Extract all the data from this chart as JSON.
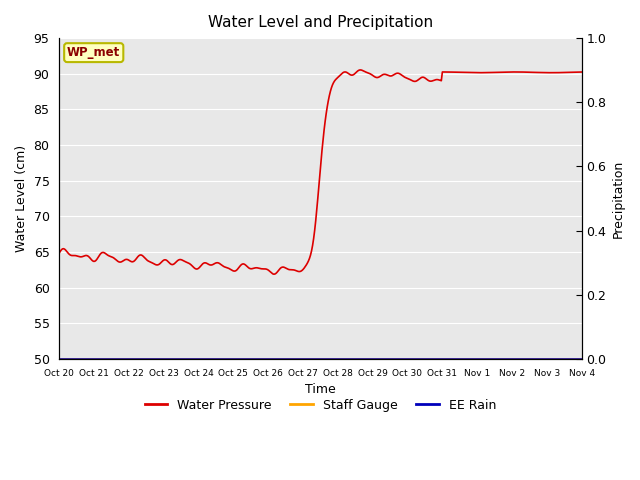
{
  "title": "Water Level and Precipitation",
  "xlabel": "Time",
  "ylabel_left": "Water Level (cm)",
  "ylabel_right": "Precipitation",
  "annotation_text": "WP_met",
  "annotation_color": "#8B0000",
  "annotation_bg": "#FFFFC0",
  "annotation_edge": "#B8B800",
  "ylim_left": [
    50,
    95
  ],
  "ylim_right": [
    0.0,
    1.0
  ],
  "yticks_left": [
    50,
    55,
    60,
    65,
    70,
    75,
    80,
    85,
    90,
    95
  ],
  "yticks_right": [
    0.0,
    0.2,
    0.4,
    0.6,
    0.8,
    1.0
  ],
  "xtick_labels": [
    "Oct 20",
    "Oct 21",
    "Oct 22",
    "Oct 23",
    "Oct 24",
    "Oct 25",
    "Oct 26",
    "Oct 27",
    "Oct 28",
    "Oct 29",
    "Oct 30",
    "Oct 31",
    "Nov 1",
    "Nov 2",
    "Nov 3",
    "Nov 4"
  ],
  "water_pressure_color": "#DD0000",
  "staff_gauge_color": "#FFA500",
  "ee_rain_color": "#0000BB",
  "bg_color": "#E8E8E8",
  "grid_color": "#FFFFFF",
  "legend_items": [
    "Water Pressure",
    "Staff Gauge",
    "EE Rain"
  ],
  "figsize": [
    6.4,
    4.8
  ],
  "dpi": 100
}
